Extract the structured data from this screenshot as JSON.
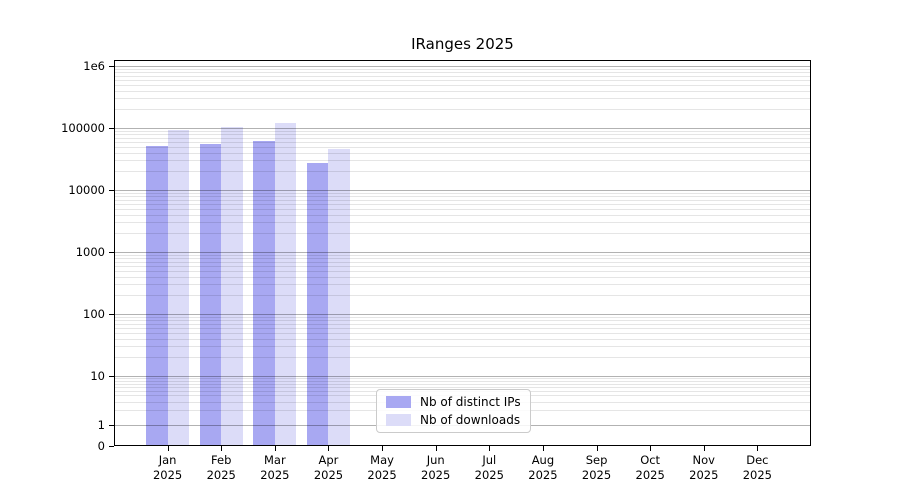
{
  "chart_data": {
    "type": "bar",
    "title": "IRanges 2025",
    "year": "2025",
    "months": [
      "Jan",
      "Feb",
      "Mar",
      "Apr",
      "May",
      "Jun",
      "Jul",
      "Aug",
      "Sep",
      "Oct",
      "Nov",
      "Dec"
    ],
    "series": [
      {
        "name": "Nb of distinct IPs",
        "color": "#a8a8f2",
        "values": [
          52000,
          55000,
          62000,
          27000,
          null,
          null,
          null,
          null,
          null,
          null,
          null,
          null
        ]
      },
      {
        "name": "Nb of downloads",
        "color": "#dcdcf8",
        "values": [
          92000,
          103000,
          122000,
          46000,
          null,
          null,
          null,
          null,
          null,
          null,
          null,
          null
        ]
      }
    ],
    "yscale": "symlog",
    "y_ticks": [
      0,
      1,
      10,
      100,
      1000,
      10000,
      100000,
      1000000
    ],
    "y_tick_labels": [
      "0",
      "1",
      "10",
      "100",
      "1000",
      "10000",
      "100000",
      "1e6"
    ],
    "ylim": [
      0,
      1250000
    ],
    "grid": "horizontal major and log-minor lines, drawn over bars",
    "legend_position": "lower-center inside plot",
    "bar_group": "two bars per month, IPs left of tick, downloads right of tick"
  },
  "colors": {
    "grid_major": "rgba(0,0,0,0.30)",
    "grid_minor": "rgba(0,0,0,0.10)",
    "spine": "#000000",
    "background": "#ffffff"
  }
}
